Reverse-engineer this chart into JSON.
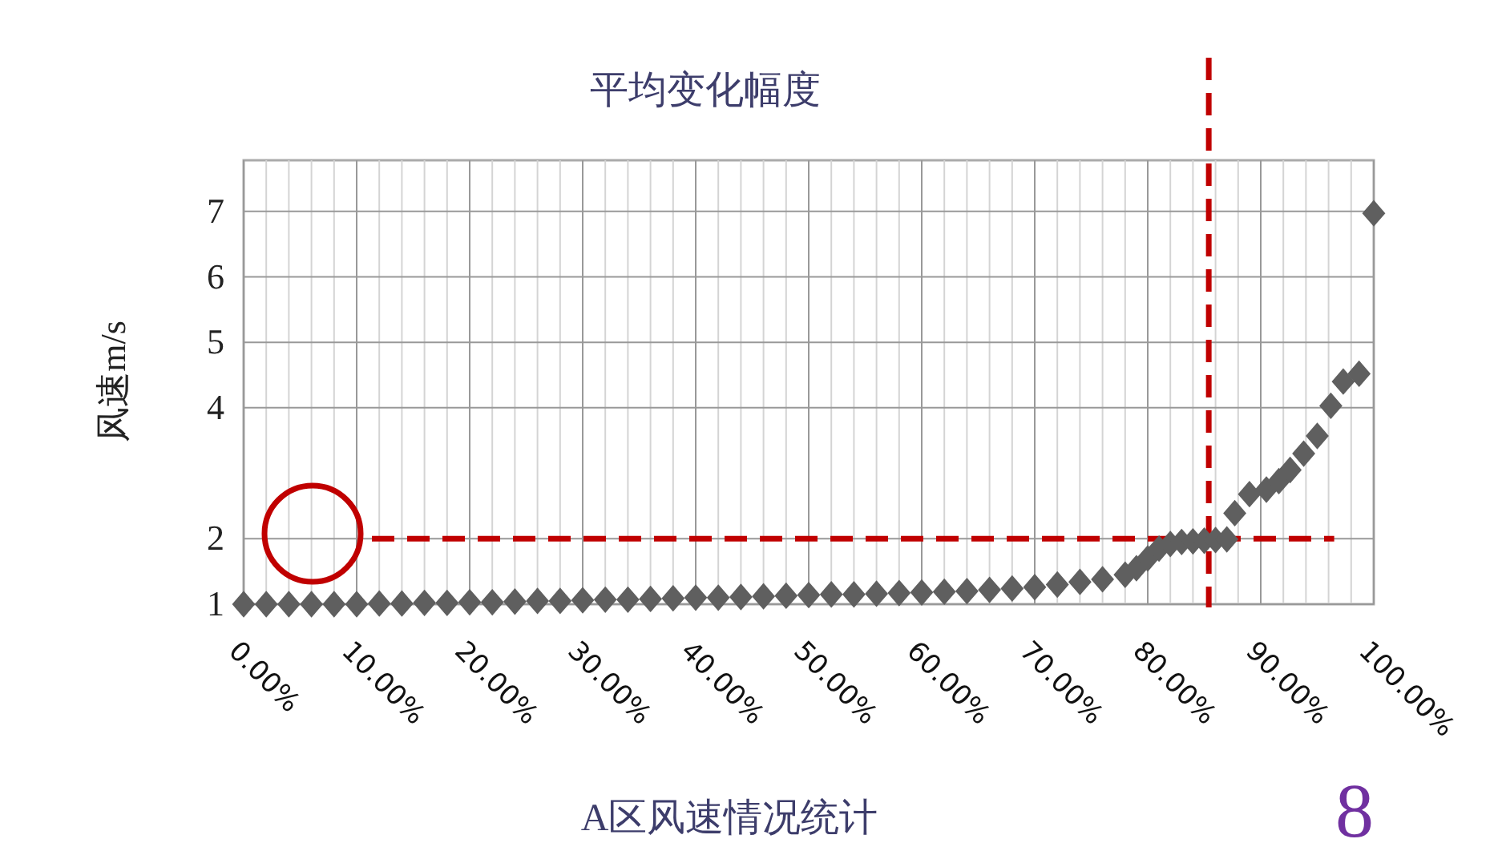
{
  "chart_data": {
    "type": "scatter",
    "title": "平均变化幅度",
    "xlabel": "A区风速情况统计",
    "ylabel": "风速m/s",
    "annotations": [
      "8"
    ],
    "x": [
      0,
      2,
      4,
      6,
      8,
      10,
      12,
      14,
      16,
      18,
      20,
      22,
      24,
      26,
      28,
      30,
      32,
      34,
      36,
      38,
      40,
      42,
      44,
      46,
      48,
      50,
      52,
      54,
      56,
      58,
      60,
      62,
      64,
      66,
      68,
      70,
      72,
      74,
      76,
      78,
      79,
      80,
      81,
      82,
      83,
      84,
      85,
      86,
      87,
      87.7,
      89,
      90.5,
      91.6,
      92.6,
      93.8,
      95,
      96.2,
      97.3,
      98.7,
      100
    ],
    "series": [
      {
        "color": "#5f5f5f",
        "values": [
          1.0,
          1.0,
          1.0,
          1.0,
          1.0,
          1.0,
          1.01,
          1.01,
          1.02,
          1.02,
          1.03,
          1.03,
          1.04,
          1.05,
          1.05,
          1.06,
          1.07,
          1.07,
          1.08,
          1.09,
          1.1,
          1.1,
          1.11,
          1.12,
          1.13,
          1.14,
          1.15,
          1.15,
          1.16,
          1.17,
          1.18,
          1.19,
          1.2,
          1.22,
          1.24,
          1.26,
          1.3,
          1.34,
          1.38,
          1.45,
          1.55,
          1.7,
          1.85,
          1.92,
          1.95,
          1.96,
          1.97,
          1.98,
          1.99,
          2.39,
          2.68,
          2.75,
          2.88,
          3.05,
          3.3,
          3.57,
          4.03,
          4.4,
          4.52,
          6.97
        ]
      }
    ],
    "xlim": [
      0,
      100
    ],
    "ylim": [
      1,
      7.78
    ],
    "xticks": [
      {
        "value": 0,
        "label": "0.00%"
      },
      {
        "value": 10,
        "label": "10.00%"
      },
      {
        "value": 20,
        "label": "20.00%"
      },
      {
        "value": 30,
        "label": "30.00%"
      },
      {
        "value": 40,
        "label": "40.00%"
      },
      {
        "value": 50,
        "label": "50.00%"
      },
      {
        "value": 60,
        "label": "60.00%"
      },
      {
        "value": 70,
        "label": "70.00%"
      },
      {
        "value": 80,
        "label": "80.00%"
      },
      {
        "value": 90,
        "label": "90.00%"
      },
      {
        "value": 100,
        "label": "100.00%"
      }
    ],
    "yticks": [
      1,
      2,
      4,
      5,
      6,
      7
    ],
    "ref_lines": [
      {
        "axis": "y",
        "value": 2.0,
        "color": "#c00000",
        "line_style": "dashed"
      },
      {
        "axis": "x",
        "value": 85.4,
        "color": "#c00000",
        "line_style": "dashed"
      }
    ],
    "grid": true,
    "marker": "diamond"
  }
}
